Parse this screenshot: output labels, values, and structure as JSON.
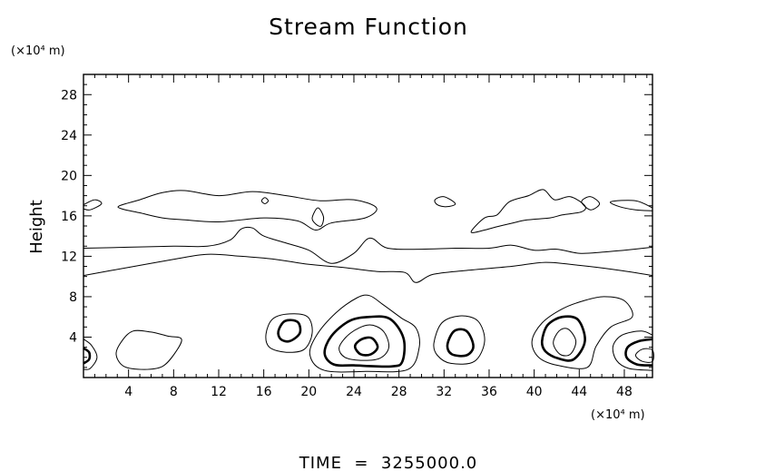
{
  "chart_data": {
    "type": "contour",
    "title": "Stream Function",
    "ylabel": "Height",
    "y_unit": "(×10⁴ m)",
    "x_unit": "(×10⁴ m)",
    "x_ticks": [
      4,
      8,
      12,
      16,
      20,
      24,
      28,
      32,
      36,
      40,
      44,
      48
    ],
    "y_ticks": [
      4,
      8,
      12,
      16,
      20,
      24,
      28
    ],
    "xlim": [
      0,
      50.5
    ],
    "ylim": [
      0,
      30
    ],
    "footer": "TIME  =  3255000.0",
    "grid": false,
    "contours": [
      {
        "kind": "band",
        "level": "thin",
        "points": [
          [
            0,
            17.1
          ],
          [
            1,
            17.6
          ],
          [
            1.6,
            17.2
          ],
          [
            0.6,
            16.6
          ],
          [
            0,
            16.7
          ]
        ]
      },
      {
        "kind": "band",
        "level": "thin",
        "points": [
          [
            3.2,
            17.0
          ],
          [
            5,
            17.6
          ],
          [
            7,
            18.3
          ],
          [
            9,
            18.5
          ],
          [
            12,
            18.0
          ],
          [
            15,
            18.4
          ],
          [
            18,
            18.0
          ],
          [
            21,
            17.5
          ],
          [
            24,
            17.6
          ],
          [
            26,
            16.8
          ],
          [
            25,
            15.8
          ],
          [
            22,
            15.3
          ],
          [
            20.6,
            14.6
          ],
          [
            19,
            15.5
          ],
          [
            16,
            15.8
          ],
          [
            12,
            15.4
          ],
          [
            9,
            15.6
          ],
          [
            7,
            15.8
          ],
          [
            5,
            16.3
          ],
          [
            3.4,
            16.7
          ],
          [
            3.2,
            17.0
          ]
        ]
      },
      {
        "kind": "cell",
        "level": "thin",
        "points": [
          [
            20.3,
            15.8
          ],
          [
            20.8,
            16.8
          ],
          [
            21.3,
            15.9
          ],
          [
            21.1,
            15.0
          ],
          [
            20.6,
            15.2
          ],
          [
            20.3,
            15.8
          ]
        ]
      },
      {
        "kind": "cell",
        "level": "thin",
        "points": [
          [
            15.8,
            17.5
          ],
          [
            16.1,
            17.8
          ],
          [
            16.4,
            17.5
          ],
          [
            16.1,
            17.2
          ],
          [
            15.8,
            17.5
          ]
        ]
      },
      {
        "kind": "band",
        "level": "thin",
        "points": [
          [
            31.2,
            17.6
          ],
          [
            32,
            17.9
          ],
          [
            33.0,
            17.2
          ],
          [
            32.2,
            16.9
          ],
          [
            31.4,
            17.1
          ],
          [
            31.2,
            17.6
          ]
        ]
      },
      {
        "kind": "band",
        "level": "thin",
        "points": [
          [
            34.4,
            14.4
          ],
          [
            35.6,
            15.8
          ],
          [
            36.7,
            16.1
          ],
          [
            37.8,
            17.4
          ],
          [
            39.5,
            18.0
          ],
          [
            40.8,
            18.6
          ],
          [
            41.8,
            17.6
          ],
          [
            43.2,
            17.9
          ],
          [
            44.5,
            17.0
          ],
          [
            44.2,
            16.4
          ],
          [
            42.5,
            16.1
          ],
          [
            41.4,
            15.8
          ],
          [
            39.4,
            15.6
          ],
          [
            38.1,
            15.3
          ],
          [
            36.6,
            14.9
          ],
          [
            35.6,
            14.6
          ],
          [
            34.4,
            14.4
          ]
        ]
      },
      {
        "kind": "cell",
        "level": "thin",
        "points": [
          [
            44.2,
            17.4
          ],
          [
            45.0,
            17.9
          ],
          [
            45.8,
            17.2
          ],
          [
            45.0,
            16.6
          ],
          [
            44.2,
            17.4
          ]
        ]
      },
      {
        "kind": "band",
        "level": "thin",
        "points": [
          [
            50.5,
            16.8
          ],
          [
            49,
            17.5
          ],
          [
            46.8,
            17.4
          ],
          [
            47.6,
            16.9
          ],
          [
            49,
            16.6
          ],
          [
            50.5,
            16.5
          ]
        ]
      },
      {
        "kind": "line",
        "level": "thin",
        "points": [
          [
            0,
            12.8
          ],
          [
            4,
            12.9
          ],
          [
            8,
            13.0
          ],
          [
            11,
            13.0
          ],
          [
            13,
            13.6
          ],
          [
            14,
            14.7
          ],
          [
            15,
            14.8
          ],
          [
            16,
            14.0
          ],
          [
            18,
            13.3
          ],
          [
            20,
            12.6
          ],
          [
            22,
            11.3
          ],
          [
            24,
            12.3
          ],
          [
            25.4,
            13.8
          ],
          [
            27,
            12.8
          ],
          [
            30,
            12.7
          ],
          [
            33,
            12.8
          ],
          [
            36,
            12.8
          ],
          [
            38,
            13.1
          ],
          [
            40,
            12.6
          ],
          [
            42,
            12.7
          ],
          [
            44,
            12.3
          ],
          [
            46,
            12.4
          ],
          [
            48,
            12.6
          ],
          [
            50.5,
            12.9
          ]
        ]
      },
      {
        "kind": "line",
        "level": "thin",
        "points": [
          [
            0,
            10.1
          ],
          [
            4,
            10.9
          ],
          [
            8,
            11.7
          ],
          [
            11,
            12.2
          ],
          [
            14,
            12.0
          ],
          [
            17,
            11.7
          ],
          [
            20,
            11.2
          ],
          [
            23,
            10.9
          ],
          [
            26,
            10.5
          ],
          [
            28.5,
            10.4
          ],
          [
            29.5,
            9.4
          ],
          [
            31,
            10.2
          ],
          [
            34,
            10.6
          ],
          [
            38,
            11.0
          ],
          [
            41,
            11.4
          ],
          [
            44,
            11.1
          ],
          [
            47,
            10.7
          ],
          [
            50.5,
            10.1
          ]
        ]
      },
      {
        "kind": "cell",
        "level": "thin",
        "points": [
          [
            0,
            3.8
          ],
          [
            0.7,
            3.2
          ],
          [
            1.2,
            2.0
          ],
          [
            0.6,
            0.9
          ],
          [
            0,
            0.8
          ]
        ]
      },
      {
        "kind": "cell",
        "level": "thick",
        "points": [
          [
            0,
            2.9
          ],
          [
            0.5,
            2.5
          ],
          [
            0.5,
            1.8
          ],
          [
            0,
            1.4
          ]
        ]
      },
      {
        "kind": "cell",
        "level": "thin",
        "points": [
          [
            2.9,
            2.3
          ],
          [
            3.4,
            3.6
          ],
          [
            4.4,
            4.6
          ],
          [
            6,
            4.5
          ],
          [
            7.5,
            4.1
          ],
          [
            8.7,
            3.8
          ],
          [
            8.1,
            2.4
          ],
          [
            7,
            1.1
          ],
          [
            5.4,
            0.8
          ],
          [
            3.6,
            1.1
          ],
          [
            2.9,
            2.3
          ]
        ]
      },
      {
        "kind": "cell",
        "level": "thin",
        "points": [
          [
            16.2,
            4.3
          ],
          [
            16.8,
            5.8
          ],
          [
            18.3,
            6.3
          ],
          [
            19.9,
            6.0
          ],
          [
            20.3,
            4.4
          ],
          [
            19.6,
            2.8
          ],
          [
            18.0,
            2.5
          ],
          [
            16.5,
            3.0
          ],
          [
            16.2,
            4.3
          ]
        ]
      },
      {
        "kind": "cell",
        "level": "thick",
        "points": [
          [
            17.3,
            4.6
          ],
          [
            17.9,
            5.6
          ],
          [
            19.0,
            5.5
          ],
          [
            19.2,
            4.4
          ],
          [
            18.3,
            3.6
          ],
          [
            17.5,
            3.8
          ],
          [
            17.3,
            4.6
          ]
        ]
      },
      {
        "kind": "cell",
        "level": "thin",
        "points": [
          [
            20.1,
            2.2
          ],
          [
            20.7,
            4.2
          ],
          [
            22.4,
            6.4
          ],
          [
            24.3,
            7.9
          ],
          [
            25.4,
            8.1
          ],
          [
            26.6,
            7.2
          ],
          [
            28.2,
            5.9
          ],
          [
            29.5,
            4.9
          ],
          [
            29.8,
            3.0
          ],
          [
            28.8,
            0.8
          ],
          [
            25.1,
            0.6
          ],
          [
            21.4,
            0.7
          ],
          [
            20.1,
            2.2
          ]
        ]
      },
      {
        "kind": "cell",
        "level": "thick",
        "points": [
          [
            21.4,
            2.4
          ],
          [
            22.0,
            4.1
          ],
          [
            23.6,
            5.6
          ],
          [
            25.4,
            6.0
          ],
          [
            27.2,
            5.8
          ],
          [
            28.4,
            3.9
          ],
          [
            28.3,
            1.6
          ],
          [
            27.3,
            1.1
          ],
          [
            24.0,
            1.2
          ],
          [
            22.2,
            1.3
          ],
          [
            21.4,
            2.4
          ]
        ]
      },
      {
        "kind": "cell",
        "level": "thin",
        "points": [
          [
            22.7,
            3.0
          ],
          [
            23.7,
            4.4
          ],
          [
            25.3,
            5.2
          ],
          [
            26.6,
            4.6
          ],
          [
            27.1,
            3.0
          ],
          [
            26.3,
            1.9
          ],
          [
            24.6,
            1.7
          ],
          [
            23.2,
            2.0
          ],
          [
            22.7,
            3.0
          ]
        ]
      },
      {
        "kind": "cell",
        "level": "thick",
        "points": [
          [
            24.1,
            3.1
          ],
          [
            24.7,
            3.8
          ],
          [
            25.6,
            3.9
          ],
          [
            26.1,
            3.0
          ],
          [
            25.5,
            2.3
          ],
          [
            24.6,
            2.3
          ],
          [
            24.1,
            3.1
          ]
        ]
      },
      {
        "kind": "cell",
        "level": "thin",
        "points": [
          [
            31.1,
            3.4
          ],
          [
            31.8,
            5.4
          ],
          [
            33.4,
            6.1
          ],
          [
            35.0,
            5.6
          ],
          [
            35.6,
            3.6
          ],
          [
            34.7,
            1.6
          ],
          [
            32.6,
            1.4
          ],
          [
            31.4,
            2.2
          ],
          [
            31.1,
            3.4
          ]
        ]
      },
      {
        "kind": "cell",
        "level": "thick",
        "points": [
          [
            32.3,
            3.2
          ],
          [
            32.9,
            4.6
          ],
          [
            34.0,
            4.6
          ],
          [
            34.6,
            3.1
          ],
          [
            34.0,
            2.2
          ],
          [
            32.7,
            2.3
          ],
          [
            32.3,
            3.2
          ]
        ]
      },
      {
        "kind": "cell",
        "level": "thin",
        "points": [
          [
            39.8,
            3.6
          ],
          [
            40.7,
            5.4
          ],
          [
            42.5,
            6.8
          ],
          [
            44.4,
            7.6
          ],
          [
            46.2,
            8.0
          ],
          [
            48.0,
            7.6
          ],
          [
            48.7,
            6.0
          ],
          [
            46.8,
            5.0
          ],
          [
            45.5,
            3.1
          ],
          [
            44.7,
            1.0
          ],
          [
            42.1,
            1.2
          ],
          [
            40.4,
            2.0
          ],
          [
            39.8,
            3.6
          ]
        ]
      },
      {
        "kind": "cell",
        "level": "thick",
        "points": [
          [
            40.7,
            3.6
          ],
          [
            41.2,
            5.2
          ],
          [
            42.5,
            6.0
          ],
          [
            43.9,
            5.7
          ],
          [
            44.5,
            3.6
          ],
          [
            43.5,
            1.8
          ],
          [
            42.1,
            1.9
          ],
          [
            41.0,
            2.6
          ],
          [
            40.7,
            3.6
          ]
        ]
      },
      {
        "kind": "cell",
        "level": "thin",
        "points": [
          [
            41.7,
            3.4
          ],
          [
            42.2,
            4.6
          ],
          [
            43.0,
            4.8
          ],
          [
            43.7,
            3.6
          ],
          [
            43.2,
            2.3
          ],
          [
            42.3,
            2.3
          ],
          [
            41.7,
            3.4
          ]
        ]
      },
      {
        "kind": "cell",
        "level": "thin",
        "points": [
          [
            50.5,
            4.2
          ],
          [
            49.5,
            4.6
          ],
          [
            47.8,
            4.2
          ],
          [
            47.0,
            3.1
          ],
          [
            47.3,
            1.7
          ],
          [
            48.4,
            0.9
          ],
          [
            50.5,
            0.7
          ]
        ]
      },
      {
        "kind": "cell",
        "level": "thick",
        "points": [
          [
            50.5,
            3.8
          ],
          [
            49.3,
            3.6
          ],
          [
            48.3,
            3.0
          ],
          [
            48.2,
            2.0
          ],
          [
            49.1,
            1.3
          ],
          [
            50.5,
            1.2
          ]
        ]
      },
      {
        "kind": "cell",
        "level": "thin",
        "points": [
          [
            49.0,
            2.2
          ],
          [
            49.6,
            2.8
          ],
          [
            50.5,
            2.7
          ],
          [
            50.5,
            1.6
          ],
          [
            49.6,
            1.6
          ],
          [
            49.0,
            2.2
          ]
        ]
      }
    ]
  }
}
